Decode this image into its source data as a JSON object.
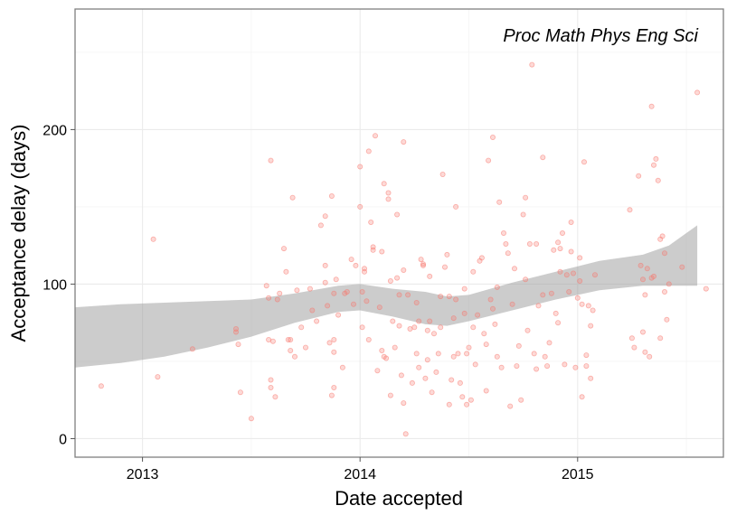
{
  "chart_data": {
    "type": "scatter",
    "xlabel": "Date accepted",
    "ylabel": "Acceptance delay (days)",
    "annotation": "Proc Math Phys Eng Sci",
    "x_ticks": [
      "2013",
      "2014",
      "2015"
    ],
    "y_ticks": [
      0,
      100,
      200
    ],
    "xlim": [
      2012.69,
      2015.67
    ],
    "ylim": [
      -12,
      278
    ],
    "grid": true,
    "point_color": "#F8766D",
    "band_color": "#999999",
    "points": [
      [
        2012.81,
        34
      ],
      [
        2013.05,
        129
      ],
      [
        2013.07,
        40
      ],
      [
        2013.23,
        58
      ],
      [
        2013.43,
        71
      ],
      [
        2013.43,
        69
      ],
      [
        2013.44,
        61
      ],
      [
        2013.45,
        30
      ],
      [
        2013.5,
        13
      ],
      [
        2013.57,
        99
      ],
      [
        2013.58,
        91
      ],
      [
        2013.58,
        64
      ],
      [
        2013.59,
        33
      ],
      [
        2013.59,
        38
      ],
      [
        2013.59,
        180
      ],
      [
        2013.6,
        63
      ],
      [
        2013.61,
        27
      ],
      [
        2013.62,
        90
      ],
      [
        2013.63,
        94
      ],
      [
        2013.65,
        123
      ],
      [
        2013.66,
        108
      ],
      [
        2013.67,
        64
      ],
      [
        2013.68,
        57
      ],
      [
        2013.68,
        64
      ],
      [
        2013.69,
        156
      ],
      [
        2013.7,
        53
      ],
      [
        2013.71,
        96
      ],
      [
        2013.73,
        72
      ],
      [
        2013.75,
        59
      ],
      [
        2013.77,
        97
      ],
      [
        2013.78,
        83
      ],
      [
        2013.8,
        76
      ],
      [
        2013.82,
        138
      ],
      [
        2013.84,
        112
      ],
      [
        2013.84,
        144
      ],
      [
        2013.84,
        101
      ],
      [
        2013.85,
        86
      ],
      [
        2013.86,
        62
      ],
      [
        2013.87,
        157
      ],
      [
        2013.87,
        28
      ],
      [
        2013.88,
        33
      ],
      [
        2013.88,
        64
      ],
      [
        2013.88,
        56
      ],
      [
        2013.88,
        94
      ],
      [
        2013.89,
        103
      ],
      [
        2013.9,
        80
      ],
      [
        2013.92,
        46
      ],
      [
        2013.93,
        94
      ],
      [
        2013.94,
        95
      ],
      [
        2013.96,
        116
      ],
      [
        2013.97,
        87
      ],
      [
        2013.98,
        112
      ],
      [
        2014.0,
        176
      ],
      [
        2014.0,
        150
      ],
      [
        2014.01,
        72
      ],
      [
        2014.01,
        95
      ],
      [
        2014.02,
        108
      ],
      [
        2014.02,
        110
      ],
      [
        2014.03,
        89
      ],
      [
        2014.04,
        64
      ],
      [
        2014.04,
        186
      ],
      [
        2014.05,
        140
      ],
      [
        2014.06,
        122
      ],
      [
        2014.06,
        124
      ],
      [
        2014.07,
        196
      ],
      [
        2014.08,
        44
      ],
      [
        2014.09,
        85
      ],
      [
        2014.1,
        121
      ],
      [
        2014.1,
        57
      ],
      [
        2014.11,
        165
      ],
      [
        2014.11,
        53
      ],
      [
        2014.12,
        52
      ],
      [
        2014.13,
        155
      ],
      [
        2014.13,
        159
      ],
      [
        2014.14,
        102
      ],
      [
        2014.14,
        28
      ],
      [
        2014.15,
        76
      ],
      [
        2014.16,
        59
      ],
      [
        2014.17,
        145
      ],
      [
        2014.17,
        104
      ],
      [
        2014.18,
        93
      ],
      [
        2014.18,
        73
      ],
      [
        2014.19,
        41
      ],
      [
        2014.2,
        23
      ],
      [
        2014.2,
        109
      ],
      [
        2014.2,
        192
      ],
      [
        2014.21,
        3
      ],
      [
        2014.22,
        93
      ],
      [
        2014.23,
        71
      ],
      [
        2014.24,
        36
      ],
      [
        2014.25,
        72
      ],
      [
        2014.26,
        88
      ],
      [
        2014.26,
        55
      ],
      [
        2014.27,
        46
      ],
      [
        2014.27,
        76
      ],
      [
        2014.28,
        116
      ],
      [
        2014.29,
        112
      ],
      [
        2014.29,
        113
      ],
      [
        2014.3,
        39
      ],
      [
        2014.31,
        51
      ],
      [
        2014.31,
        70
      ],
      [
        2014.32,
        76
      ],
      [
        2014.32,
        105
      ],
      [
        2014.33,
        30
      ],
      [
        2014.34,
        68
      ],
      [
        2014.35,
        43
      ],
      [
        2014.36,
        55
      ],
      [
        2014.37,
        92
      ],
      [
        2014.37,
        72
      ],
      [
        2014.38,
        171
      ],
      [
        2014.39,
        111
      ],
      [
        2014.4,
        119
      ],
      [
        2014.41,
        22
      ],
      [
        2014.41,
        92
      ],
      [
        2014.42,
        38
      ],
      [
        2014.43,
        53
      ],
      [
        2014.43,
        78
      ],
      [
        2014.44,
        150
      ],
      [
        2014.44,
        90
      ],
      [
        2014.45,
        55
      ],
      [
        2014.46,
        36
      ],
      [
        2014.47,
        27
      ],
      [
        2014.48,
        97
      ],
      [
        2014.48,
        81
      ],
      [
        2014.49,
        55
      ],
      [
        2014.49,
        22
      ],
      [
        2014.5,
        59
      ],
      [
        2014.51,
        25
      ],
      [
        2014.52,
        108
      ],
      [
        2014.52,
        72
      ],
      [
        2014.53,
        48
      ],
      [
        2014.54,
        80
      ],
      [
        2014.55,
        115
      ],
      [
        2014.56,
        117
      ],
      [
        2014.57,
        68
      ],
      [
        2014.58,
        61
      ],
      [
        2014.58,
        31
      ],
      [
        2014.59,
        180
      ],
      [
        2014.6,
        90
      ],
      [
        2014.61,
        195
      ],
      [
        2014.61,
        84
      ],
      [
        2014.62,
        74
      ],
      [
        2014.63,
        53
      ],
      [
        2014.63,
        98
      ],
      [
        2014.64,
        153
      ],
      [
        2014.65,
        46
      ],
      [
        2014.66,
        133
      ],
      [
        2014.67,
        126
      ],
      [
        2014.68,
        120
      ],
      [
        2014.69,
        21
      ],
      [
        2014.7,
        87
      ],
      [
        2014.71,
        110
      ],
      [
        2014.72,
        47
      ],
      [
        2014.73,
        60
      ],
      [
        2014.74,
        25
      ],
      [
        2014.75,
        145
      ],
      [
        2014.76,
        103
      ],
      [
        2014.76,
        156
      ],
      [
        2014.77,
        70
      ],
      [
        2014.78,
        126
      ],
      [
        2014.79,
        242
      ],
      [
        2014.8,
        55
      ],
      [
        2014.81,
        126
      ],
      [
        2014.81,
        45
      ],
      [
        2014.82,
        86
      ],
      [
        2014.84,
        182
      ],
      [
        2014.84,
        93
      ],
      [
        2014.85,
        53
      ],
      [
        2014.86,
        47
      ],
      [
        2014.87,
        62
      ],
      [
        2014.88,
        94
      ],
      [
        2014.89,
        122
      ],
      [
        2014.9,
        81
      ],
      [
        2014.91,
        75
      ],
      [
        2014.91,
        127
      ],
      [
        2014.92,
        123
      ],
      [
        2014.92,
        108
      ],
      [
        2014.93,
        133
      ],
      [
        2014.94,
        48
      ],
      [
        2014.95,
        106
      ],
      [
        2014.96,
        95
      ],
      [
        2014.97,
        140
      ],
      [
        2014.97,
        121
      ],
      [
        2014.98,
        107
      ],
      [
        2014.99,
        46
      ],
      [
        2015.0,
        91
      ],
      [
        2015.01,
        117
      ],
      [
        2015.01,
        102
      ],
      [
        2015.02,
        87
      ],
      [
        2015.02,
        27
      ],
      [
        2015.03,
        179
      ],
      [
        2015.04,
        47
      ],
      [
        2015.04,
        54
      ],
      [
        2015.05,
        86
      ],
      [
        2015.06,
        39
      ],
      [
        2015.06,
        73
      ],
      [
        2015.07,
        83
      ],
      [
        2015.08,
        106
      ],
      [
        2015.24,
        148
      ],
      [
        2015.25,
        65
      ],
      [
        2015.26,
        59
      ],
      [
        2015.28,
        170
      ],
      [
        2015.29,
        112
      ],
      [
        2015.3,
        103
      ],
      [
        2015.3,
        69
      ],
      [
        2015.31,
        56
      ],
      [
        2015.31,
        93
      ],
      [
        2015.32,
        110
      ],
      [
        2015.33,
        53
      ],
      [
        2015.34,
        215
      ],
      [
        2015.34,
        104
      ],
      [
        2015.35,
        105
      ],
      [
        2015.35,
        177
      ],
      [
        2015.36,
        181
      ],
      [
        2015.37,
        167
      ],
      [
        2015.38,
        129
      ],
      [
        2015.38,
        65
      ],
      [
        2015.39,
        131
      ],
      [
        2015.4,
        120
      ],
      [
        2015.4,
        95
      ],
      [
        2015.41,
        77
      ],
      [
        2015.42,
        100
      ],
      [
        2015.48,
        111
      ],
      [
        2015.55,
        224
      ],
      [
        2015.59,
        97
      ]
    ],
    "band": {
      "x": [
        2012.69,
        2012.9,
        2013.1,
        2013.3,
        2013.5,
        2013.7,
        2013.9,
        2014.0,
        2014.15,
        2014.3,
        2014.4,
        2014.5,
        2014.7,
        2014.9,
        2015.1,
        2015.3,
        2015.42,
        2015.55
      ],
      "lower": [
        46,
        49,
        53,
        59,
        66,
        75,
        82,
        83,
        79,
        74,
        73,
        76,
        83,
        90,
        96,
        99,
        99,
        99
      ],
      "upper": [
        85,
        87,
        88,
        89,
        90,
        94,
        99,
        100,
        97,
        95,
        92,
        93,
        101,
        108,
        115,
        119,
        125,
        138
      ]
    }
  }
}
